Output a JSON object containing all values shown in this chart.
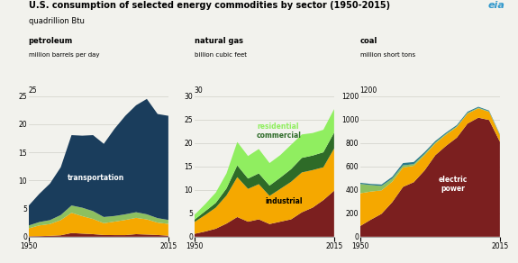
{
  "title": "U.S. consumption of selected energy commodities by sector (1950-2015)",
  "subtitle": "quadrillion Btu",
  "years": [
    1950,
    1955,
    1960,
    1965,
    1970,
    1975,
    1980,
    1985,
    1990,
    1995,
    2000,
    2005,
    2010,
    2015
  ],
  "petroleum": {
    "label": "petroleum",
    "sublabel": "million barrels per day",
    "ylim": [
      0,
      25
    ],
    "yticks": [
      0,
      5,
      10,
      15,
      20,
      25
    ],
    "electric_power": [
      0.08,
      0.1,
      0.15,
      0.25,
      0.65,
      0.55,
      0.45,
      0.3,
      0.28,
      0.28,
      0.45,
      0.38,
      0.3,
      0.18
    ],
    "industrial": [
      1.4,
      1.9,
      2.1,
      2.7,
      3.6,
      3.1,
      2.7,
      2.1,
      2.4,
      2.7,
      2.9,
      2.7,
      2.2,
      2.1
    ],
    "commercial_residential": [
      0.5,
      0.6,
      0.7,
      0.9,
      1.3,
      1.5,
      1.4,
      1.1,
      1.0,
      1.0,
      1.0,
      0.9,
      0.8,
      0.7
    ],
    "transportation": [
      3.5,
      5.0,
      6.5,
      8.5,
      12.5,
      12.8,
      13.5,
      13.0,
      15.5,
      17.5,
      19.0,
      20.5,
      18.5,
      18.5
    ]
  },
  "natural_gas": {
    "label": "natural gas",
    "sublabel": "billion cubic feet",
    "ylim": [
      0,
      30
    ],
    "yticks": [
      0,
      5,
      10,
      15,
      20,
      25,
      30
    ],
    "electric_power": [
      0.6,
      1.1,
      1.7,
      2.8,
      4.2,
      3.2,
      3.7,
      2.7,
      3.2,
      3.7,
      5.2,
      6.2,
      7.8,
      9.8
    ],
    "industrial": [
      2.5,
      3.5,
      4.5,
      6.0,
      8.5,
      7.0,
      7.5,
      6.0,
      7.0,
      8.0,
      8.5,
      8.0,
      7.0,
      9.0
    ],
    "commercial": [
      0.5,
      0.8,
      1.0,
      1.5,
      2.5,
      2.2,
      2.3,
      2.2,
      2.4,
      2.7,
      3.1,
      3.1,
      3.2,
      3.4
    ],
    "residential": [
      1.0,
      1.5,
      2.2,
      3.2,
      5.0,
      4.8,
      5.2,
      4.8,
      4.8,
      5.2,
      5.0,
      4.8,
      4.8,
      5.0
    ]
  },
  "coal": {
    "label": "coal",
    "sublabel": "million short tons",
    "ylim": [
      0,
      1200
    ],
    "yticks": [
      0,
      200,
      400,
      600,
      800,
      1000,
      1200
    ],
    "electric_power": [
      90,
      145,
      195,
      295,
      425,
      465,
      565,
      695,
      775,
      845,
      965,
      1015,
      995,
      810
    ],
    "industrial": [
      280,
      240,
      200,
      175,
      165,
      140,
      130,
      100,
      95,
      90,
      85,
      80,
      70,
      55
    ],
    "commercial_residential": [
      80,
      55,
      38,
      26,
      18,
      14,
      11,
      9,
      8,
      7,
      6,
      5,
      4,
      3
    ],
    "other": [
      10,
      10,
      12,
      15,
      20,
      18,
      15,
      12,
      10,
      10,
      10,
      8,
      6,
      5
    ]
  },
  "colors": {
    "electric_power": "#7B1F1F",
    "industrial": "#F5A800",
    "commercial_residential": "#8DC060",
    "transportation": "#1A3D5C",
    "commercial_ng": "#2E6B28",
    "residential_ng": "#90EE60",
    "coal_other": "#2A7A8A"
  },
  "background_color": "#F2F2ED",
  "grid_color": "#D0D0C8"
}
